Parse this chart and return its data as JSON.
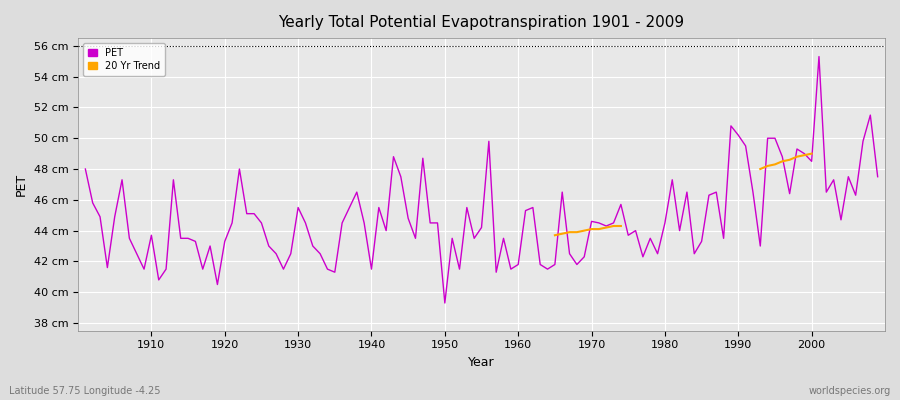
{
  "title": "Yearly Total Potential Evapotranspiration 1901 - 2009",
  "xlabel": "Year",
  "ylabel": "PET",
  "subtitle_left": "Latitude 57.75 Longitude -4.25",
  "subtitle_right": "worldspecies.org",
  "ylim": [
    37.5,
    56.5
  ],
  "yticks": [
    38,
    40,
    42,
    44,
    46,
    48,
    50,
    52,
    54,
    56
  ],
  "ytick_labels": [
    "38 cm",
    "40 cm",
    "42 cm",
    "44 cm",
    "46 cm",
    "48 cm",
    "50 cm",
    "52 cm",
    "54 cm",
    "56 cm"
  ],
  "fig_bg_color": "#dddddd",
  "plot_bg_color": "#e8e8e8",
  "pet_color": "#cc00cc",
  "trend_color": "#ffa500",
  "dotted_line_y": 56,
  "years": [
    1901,
    1902,
    1903,
    1904,
    1905,
    1906,
    1907,
    1908,
    1909,
    1910,
    1911,
    1912,
    1913,
    1914,
    1915,
    1916,
    1917,
    1918,
    1919,
    1920,
    1921,
    1922,
    1923,
    1924,
    1925,
    1926,
    1927,
    1928,
    1929,
    1930,
    1931,
    1932,
    1933,
    1934,
    1935,
    1936,
    1937,
    1938,
    1939,
    1940,
    1941,
    1942,
    1943,
    1944,
    1945,
    1946,
    1947,
    1948,
    1949,
    1950,
    1951,
    1952,
    1953,
    1954,
    1955,
    1956,
    1957,
    1958,
    1959,
    1960,
    1961,
    1962,
    1963,
    1964,
    1965,
    1966,
    1967,
    1968,
    1969,
    1970,
    1971,
    1972,
    1973,
    1974,
    1975,
    1976,
    1977,
    1978,
    1979,
    1980,
    1981,
    1982,
    1983,
    1984,
    1985,
    1986,
    1987,
    1988,
    1989,
    1990,
    1991,
    1992,
    1993,
    1994,
    1995,
    1996,
    1997,
    1998,
    1999,
    2000,
    2001,
    2002,
    2003,
    2004,
    2005,
    2006,
    2007,
    2008,
    2009
  ],
  "pet_values": [
    48.0,
    45.8,
    44.9,
    41.6,
    44.9,
    47.3,
    43.5,
    42.5,
    41.5,
    43.7,
    40.8,
    41.5,
    47.3,
    43.5,
    43.5,
    43.3,
    41.5,
    43.0,
    40.5,
    43.3,
    44.5,
    48.0,
    45.1,
    45.1,
    44.5,
    43.0,
    42.5,
    41.5,
    42.5,
    45.5,
    44.5,
    43.0,
    42.5,
    41.5,
    41.3,
    44.5,
    45.5,
    46.5,
    44.5,
    41.5,
    45.5,
    44.0,
    48.8,
    47.5,
    44.8,
    43.5,
    48.7,
    44.5,
    44.5,
    39.3,
    43.5,
    41.5,
    45.5,
    43.5,
    44.2,
    49.8,
    41.3,
    43.5,
    41.5,
    41.8,
    45.3,
    45.5,
    41.8,
    41.5,
    41.8,
    46.5,
    42.5,
    41.8,
    42.3,
    44.6,
    44.5,
    44.3,
    44.5,
    45.7,
    43.7,
    44.0,
    42.3,
    43.5,
    42.5,
    44.5,
    47.3,
    44.0,
    46.5,
    42.5,
    43.3,
    46.3,
    46.5,
    43.5,
    50.8,
    50.2,
    49.5,
    46.5,
    43.0,
    50.0,
    50.0,
    48.8,
    46.4,
    49.3,
    49.0,
    48.5,
    55.3,
    46.5,
    47.3,
    44.7,
    47.5,
    46.3,
    49.8,
    51.5,
    47.5
  ],
  "trend_years": [
    1965,
    1966,
    1967,
    1968,
    1969,
    1970,
    1971,
    1972,
    1973,
    1974,
    1993,
    1994,
    1995,
    1996,
    1997,
    1998,
    1999,
    2000
  ],
  "trend_values": [
    43.7,
    43.8,
    43.9,
    43.9,
    44.0,
    44.1,
    44.1,
    44.2,
    44.3,
    44.3,
    48.0,
    48.2,
    48.3,
    48.5,
    48.6,
    48.8,
    48.9,
    49.0
  ],
  "legend_pet_label": "PET",
  "legend_trend_label": "20 Yr Trend",
  "xticks": [
    1910,
    1920,
    1930,
    1940,
    1950,
    1960,
    1970,
    1980,
    1990,
    2000
  ],
  "xlim": [
    1900,
    2010
  ]
}
